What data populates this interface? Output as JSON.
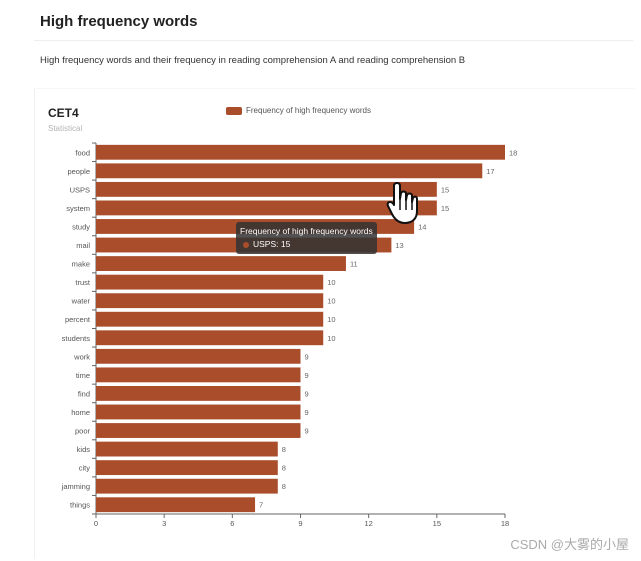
{
  "page": {
    "title": "High frequency words",
    "description": "High frequency words and their frequency in reading comprehension A and reading comprehension B"
  },
  "colors": {
    "bar": "#a94d2b",
    "axis": "#666666",
    "tooltip_bg": "#323232"
  },
  "tooltip": {
    "title": "Frequency of high frequency words",
    "label": "USPS: 15"
  },
  "watermark": "CSDN @大雾的小屋",
  "chart_data": {
    "type": "bar",
    "orientation": "horizontal",
    "title": "CET4",
    "subtitle": "Statistical",
    "legend": [
      "Frequency of high frequency words"
    ],
    "legend_position": "top-center",
    "categories": [
      "food",
      "people",
      "USPS",
      "system",
      "study",
      "mail",
      "make",
      "trust",
      "water",
      "percent",
      "students",
      "work",
      "time",
      "find",
      "home",
      "poor",
      "kids",
      "city",
      "jamming",
      "things"
    ],
    "series": [
      {
        "name": "Frequency of high frequency words",
        "values": [
          18,
          17,
          15,
          15,
          14,
          13,
          11,
          10,
          10,
          10,
          10,
          9,
          9,
          9,
          9,
          9,
          8,
          8,
          8,
          7
        ]
      }
    ],
    "xlim": [
      0,
      18
    ],
    "xticks": [
      0,
      3,
      6,
      9,
      12,
      15,
      18
    ],
    "grid": false,
    "data_labels": true
  }
}
